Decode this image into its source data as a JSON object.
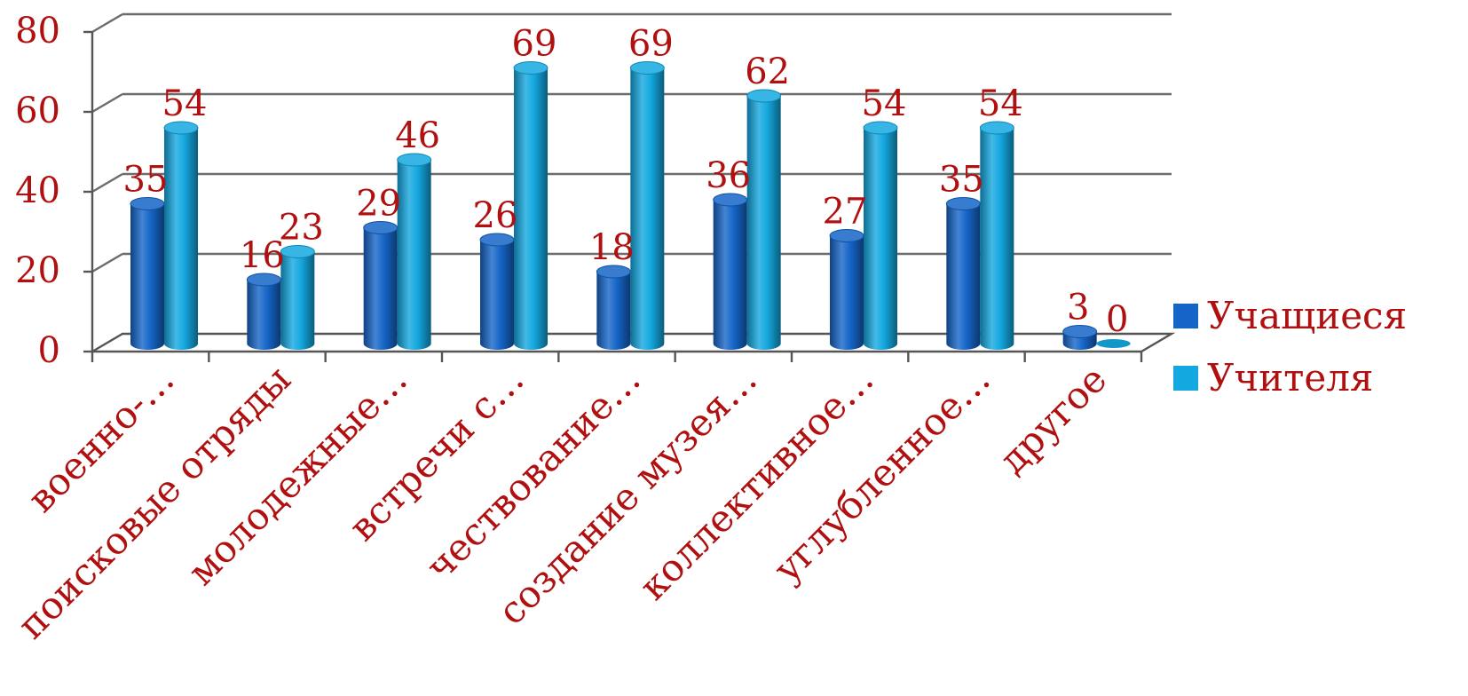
{
  "chart_data": {
    "type": "bar",
    "categories": [
      "военно-…",
      "поисковые отряды",
      "молодежные…",
      "встречи с…",
      "чествование…",
      "создание музея…",
      "коллективное…",
      "углубленное…",
      "другое"
    ],
    "series": [
      {
        "name": "Учащиеся",
        "values": [
          35,
          16,
          29,
          26,
          18,
          36,
          27,
          35,
          3
        ]
      },
      {
        "name": "Учителя",
        "values": [
          54,
          23,
          46,
          69,
          69,
          62,
          54,
          54,
          0
        ]
      }
    ],
    "ylim": [
      0,
      80
    ],
    "yticks": [
      "0",
      "20",
      "40",
      "60",
      "80"
    ],
    "legend_position": "right",
    "grid": true,
    "colors": {
      "series": [
        "#1565c8",
        "#14a8e0"
      ],
      "labels": "#b01010",
      "grid": "#6b6b6b"
    }
  }
}
